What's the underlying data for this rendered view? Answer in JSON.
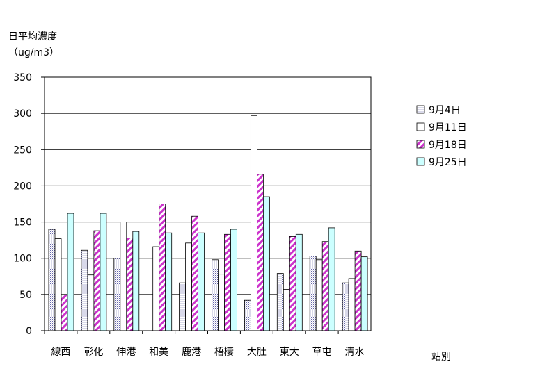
{
  "chart_data": {
    "type": "bar",
    "ylabel_line1": "日平均濃度",
    "ylabel_line2": "（ug/m3）",
    "xlabel": "站別",
    "ylim": [
      0,
      350
    ],
    "yticks": [
      0,
      50,
      100,
      150,
      200,
      250,
      300,
      350
    ],
    "grid": true,
    "legend_position": "right",
    "categories": [
      "線西",
      "彰化",
      "伸港",
      "和美",
      "鹿港",
      "梧棲",
      "大肚",
      "東大",
      "草屯",
      "清水"
    ],
    "series": [
      {
        "name": "9月4日",
        "color": "#9999cc",
        "pattern": "dots",
        "values": [
          140,
          111,
          100,
          0,
          66,
          98,
          42,
          79,
          103,
          66
        ]
      },
      {
        "name": "9月11日",
        "color": "#ffffff",
        "pattern": "none",
        "values": [
          127,
          77,
          150,
          116,
          121,
          78,
          297,
          57,
          98,
          72
        ]
      },
      {
        "name": "9月18日",
        "color": "#cc33cc",
        "pattern": "diagonal",
        "values": [
          50,
          138,
          128,
          175,
          158,
          133,
          216,
          130,
          123,
          110
        ]
      },
      {
        "name": "9月25日",
        "color": "#ccffff",
        "pattern": "none",
        "values": [
          162,
          162,
          137,
          135,
          135,
          140,
          185,
          133,
          142,
          102
        ]
      }
    ]
  }
}
